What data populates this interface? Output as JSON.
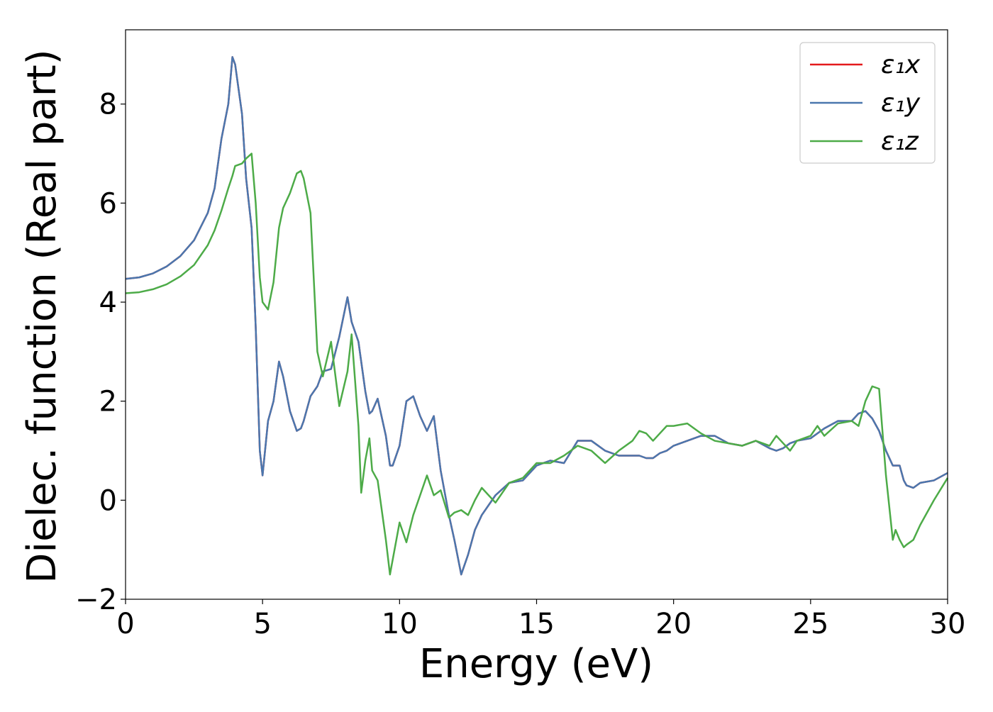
{
  "chart_data": {
    "type": "line",
    "xlabel": "Energy (eV)",
    "ylabel": "Dielec. function (Real part)",
    "x": [
      0,
      0.5,
      1,
      1.5,
      2,
      2.5,
      3,
      3.25,
      3.5,
      3.75,
      3.9,
      4,
      4.25,
      4.4,
      4.6,
      4.75,
      4.9,
      5,
      5.2,
      5.4,
      5.6,
      5.75,
      6,
      6.25,
      6.4,
      6.5,
      6.75,
      7,
      7.2,
      7.5,
      7.8,
      8.1,
      8.25,
      8.5,
      8.6,
      8.75,
      8.9,
      9,
      9.2,
      9.5,
      9.65,
      9.75,
      10,
      10.25,
      10.5,
      10.75,
      11,
      11.25,
      11.5,
      11.8,
      12,
      12.25,
      12.5,
      12.75,
      13,
      13.5,
      14,
      14.5,
      15,
      15.5,
      16,
      16.5,
      17,
      17.5,
      18,
      18.5,
      18.75,
      19,
      19.25,
      19.5,
      19.75,
      20,
      20.5,
      21,
      21.5,
      22,
      22.5,
      23,
      23.5,
      23.75,
      24,
      24.25,
      24.5,
      25,
      25.25,
      25.5,
      26,
      26.5,
      26.75,
      27,
      27.25,
      27.5,
      27.75,
      28,
      28.1,
      28.25,
      28.4,
      28.5,
      28.75,
      29,
      29.5,
      30
    ],
    "series": [
      {
        "name": "ε₁x",
        "color": "#e41a1c",
        "values": [
          4.47,
          4.5,
          4.58,
          4.72,
          4.93,
          5.25,
          5.8,
          6.3,
          7.3,
          8.0,
          8.95,
          8.8,
          7.8,
          6.5,
          5.5,
          3.5,
          1.0,
          0.5,
          1.6,
          2.0,
          2.8,
          2.5,
          1.8,
          1.4,
          1.45,
          1.6,
          2.1,
          2.3,
          2.6,
          2.65,
          3.3,
          4.1,
          3.6,
          3.2,
          2.8,
          2.2,
          1.75,
          1.8,
          2.05,
          1.3,
          0.7,
          0.7,
          1.1,
          2.0,
          2.1,
          1.7,
          1.4,
          1.7,
          0.6,
          -0.3,
          -0.8,
          -1.5,
          -1.1,
          -0.6,
          -0.3,
          0.1,
          0.35,
          0.4,
          0.7,
          0.8,
          0.75,
          1.2,
          1.2,
          1.0,
          0.9,
          0.9,
          0.9,
          0.85,
          0.85,
          0.95,
          1.0,
          1.1,
          1.2,
          1.3,
          1.3,
          1.15,
          1.1,
          1.2,
          1.05,
          1.0,
          1.05,
          1.15,
          1.2,
          1.25,
          1.35,
          1.45,
          1.6,
          1.6,
          1.75,
          1.8,
          1.65,
          1.4,
          1.0,
          0.7,
          0.7,
          0.7,
          0.4,
          0.3,
          0.25,
          0.35,
          0.4,
          0.55
        ]
      },
      {
        "name": "ε₁y",
        "color": "#4a77ae",
        "values": [
          4.47,
          4.5,
          4.58,
          4.72,
          4.93,
          5.25,
          5.8,
          6.3,
          7.3,
          8.0,
          8.95,
          8.8,
          7.8,
          6.5,
          5.5,
          3.5,
          1.0,
          0.5,
          1.6,
          2.0,
          2.8,
          2.5,
          1.8,
          1.4,
          1.45,
          1.6,
          2.1,
          2.3,
          2.6,
          2.65,
          3.3,
          4.1,
          3.6,
          3.2,
          2.8,
          2.2,
          1.75,
          1.8,
          2.05,
          1.3,
          0.7,
          0.7,
          1.1,
          2.0,
          2.1,
          1.7,
          1.4,
          1.7,
          0.6,
          -0.3,
          -0.8,
          -1.5,
          -1.1,
          -0.6,
          -0.3,
          0.1,
          0.35,
          0.4,
          0.7,
          0.8,
          0.75,
          1.2,
          1.2,
          1.0,
          0.9,
          0.9,
          0.9,
          0.85,
          0.85,
          0.95,
          1.0,
          1.1,
          1.2,
          1.3,
          1.3,
          1.15,
          1.1,
          1.2,
          1.05,
          1.0,
          1.05,
          1.15,
          1.2,
          1.25,
          1.35,
          1.45,
          1.6,
          1.6,
          1.75,
          1.8,
          1.65,
          1.4,
          1.0,
          0.7,
          0.7,
          0.7,
          0.4,
          0.3,
          0.25,
          0.35,
          0.4,
          0.55
        ]
      },
      {
        "name": "ε₁z",
        "color": "#4dab48",
        "values": [
          4.18,
          4.2,
          4.26,
          4.36,
          4.52,
          4.75,
          5.15,
          5.45,
          5.85,
          6.3,
          6.55,
          6.75,
          6.8,
          6.9,
          7.0,
          6.0,
          4.5,
          4.0,
          3.85,
          4.4,
          5.5,
          5.9,
          6.2,
          6.6,
          6.65,
          6.5,
          5.8,
          3.0,
          2.5,
          3.2,
          1.9,
          2.6,
          3.35,
          1.5,
          0.15,
          0.8,
          1.25,
          0.6,
          0.4,
          -0.8,
          -1.5,
          -1.2,
          -0.45,
          -0.85,
          -0.3,
          0.1,
          0.5,
          0.1,
          0.2,
          -0.35,
          -0.25,
          -0.2,
          -0.3,
          0.0,
          0.25,
          -0.05,
          0.35,
          0.45,
          0.75,
          0.75,
          0.9,
          1.1,
          1.0,
          0.75,
          1.0,
          1.2,
          1.4,
          1.35,
          1.2,
          1.35,
          1.5,
          1.5,
          1.55,
          1.35,
          1.2,
          1.15,
          1.1,
          1.2,
          1.1,
          1.3,
          1.15,
          1.0,
          1.2,
          1.3,
          1.5,
          1.3,
          1.55,
          1.6,
          1.5,
          2.0,
          2.3,
          2.25,
          0.5,
          -0.8,
          -0.6,
          -0.8,
          -0.95,
          -0.9,
          -0.8,
          -0.5,
          0.0,
          0.45
        ]
      }
    ],
    "xlim": [
      0,
      30
    ],
    "xticks": [
      0,
      5,
      10,
      15,
      20,
      25,
      30
    ],
    "ylim": [
      -2,
      9.5
    ],
    "yticks": [
      {
        "value": -2,
        "label": "−2"
      },
      0,
      2,
      4,
      6,
      8
    ],
    "grid": false,
    "legend": "upper right"
  }
}
